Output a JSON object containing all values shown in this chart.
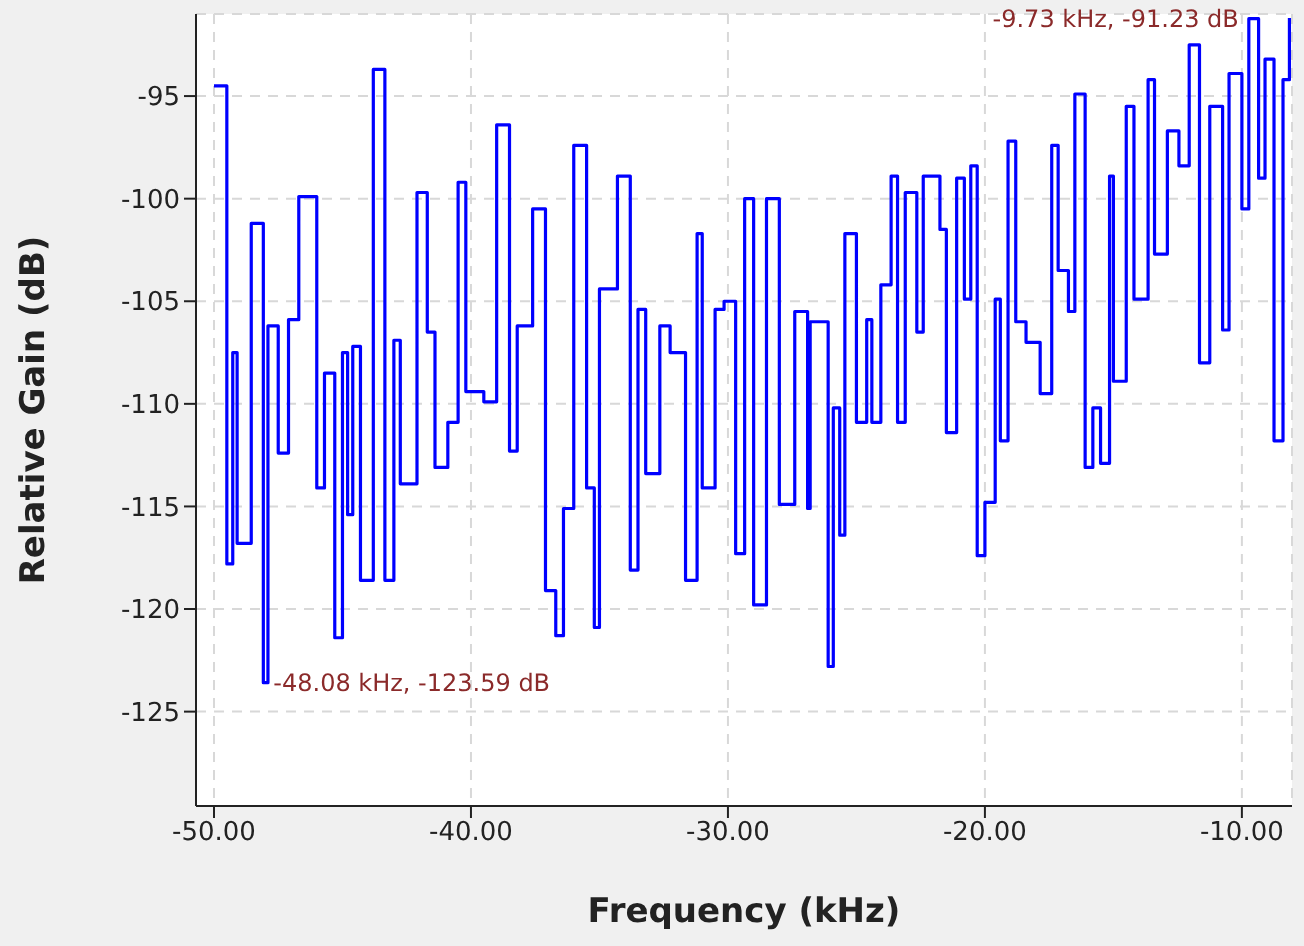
{
  "chart_data": {
    "type": "step",
    "xlabel": "Frequency (kHz)",
    "ylabel": "Relative Gain (dB)",
    "xlim": [
      -50.7,
      -8.05
    ],
    "ylim": [
      -129.6,
      -91
    ],
    "xticks": [
      {
        "value": -50,
        "label": "-50.00"
      },
      {
        "value": -40,
        "label": "-40.00"
      },
      {
        "value": -30,
        "label": "-30.00"
      },
      {
        "value": -20,
        "label": "-20.00"
      },
      {
        "value": -10,
        "label": "-10.00"
      }
    ],
    "yticks": [
      -125,
      -120,
      -115,
      -110,
      -105,
      -100,
      -95
    ],
    "grid": true,
    "marker": "none",
    "series": [
      {
        "color": "#0000ff",
        "x": [
          -50.0,
          -49.5,
          -49.27,
          -49.1,
          -48.55,
          -48.08,
          -47.9,
          -47.5,
          -47.1,
          -46.7,
          -46.0,
          -45.7,
          -45.3,
          -45.0,
          -44.8,
          -44.6,
          -44.3,
          -43.8,
          -43.35,
          -43.0,
          -42.75,
          -42.1,
          -41.7,
          -41.4,
          -40.9,
          -40.5,
          -40.2,
          -39.5,
          -39.0,
          -38.5,
          -38.2,
          -37.6,
          -37.1,
          -36.7,
          -36.4,
          -36.0,
          -35.5,
          -35.2,
          -35.0,
          -34.3,
          -33.8,
          -33.5,
          -33.2,
          -32.65,
          -32.25,
          -31.65,
          -31.2,
          -31.0,
          -30.5,
          -30.15,
          -29.7,
          -29.35,
          -29.0,
          -28.5,
          -28.0,
          -27.4,
          -26.9,
          -26.8,
          -26.1,
          -25.9,
          -25.65,
          -25.45,
          -25.0,
          -24.6,
          -24.4,
          -24.05,
          -23.65,
          -23.4,
          -23.1,
          -22.65,
          -22.4,
          -21.75,
          -21.5,
          -21.1,
          -20.8,
          -20.55,
          -20.3,
          -20.0,
          -19.6,
          -19.4,
          -19.1,
          -18.8,
          -18.4,
          -17.85,
          -17.4,
          -17.15,
          -16.75,
          -16.5,
          -16.1,
          -15.8,
          -15.5,
          -15.15,
          -15.0,
          -14.5,
          -14.2,
          -13.65,
          -13.4,
          -12.9,
          -12.45,
          -12.05,
          -11.65,
          -11.25,
          -10.75,
          -10.5,
          -10.0,
          -9.73,
          -9.35,
          -9.1,
          -8.75,
          -8.4,
          -8.15
        ],
        "values": [
          -94.5,
          -117.8,
          -107.5,
          -116.8,
          -101.2,
          -123.59,
          -106.2,
          -112.4,
          -105.9,
          -99.9,
          -114.1,
          -108.5,
          -121.4,
          -107.5,
          -115.4,
          -107.2,
          -118.6,
          -93.7,
          -118.6,
          -106.9,
          -113.9,
          -99.7,
          -106.5,
          -113.1,
          -110.9,
          -99.2,
          -109.4,
          -109.9,
          -96.4,
          -112.3,
          -106.2,
          -100.5,
          -119.1,
          -121.3,
          -115.1,
          -97.4,
          -114.1,
          -120.9,
          -104.4,
          -98.9,
          -118.1,
          -105.4,
          -113.4,
          -106.2,
          -107.5,
          -118.6,
          -101.7,
          -114.1,
          -105.4,
          -105.0,
          -117.3,
          -100.0,
          -119.8,
          -100.0,
          -114.9,
          -105.5,
          -115.1,
          -106.0,
          -122.8,
          -110.2,
          -116.4,
          -101.7,
          -110.9,
          -105.9,
          -110.9,
          -104.2,
          -98.9,
          -110.9,
          -99.7,
          -106.5,
          -98.9,
          -101.5,
          -111.4,
          -99.0,
          -104.9,
          -98.4,
          -117.4,
          -114.8,
          -104.9,
          -111.8,
          -97.2,
          -106.0,
          -107.0,
          -109.5,
          -97.4,
          -103.5,
          -105.5,
          -94.9,
          -113.1,
          -110.2,
          -112.9,
          -98.9,
          -108.9,
          -95.5,
          -104.9,
          -94.2,
          -102.7,
          -96.7,
          -98.4,
          -92.5,
          -108.0,
          -95.5,
          -106.4,
          -93.9,
          -100.5,
          -91.23,
          -99.0,
          -93.2,
          -111.8,
          -94.2,
          -91.2
        ]
      }
    ],
    "annotations": [
      {
        "text": "-48.08 kHz, -123.59 dB",
        "x": -48.08,
        "y": -123.59
      },
      {
        "text": "-9.73 kHz, -91.23 dB",
        "x": -9.73,
        "y": -91.23
      }
    ]
  }
}
